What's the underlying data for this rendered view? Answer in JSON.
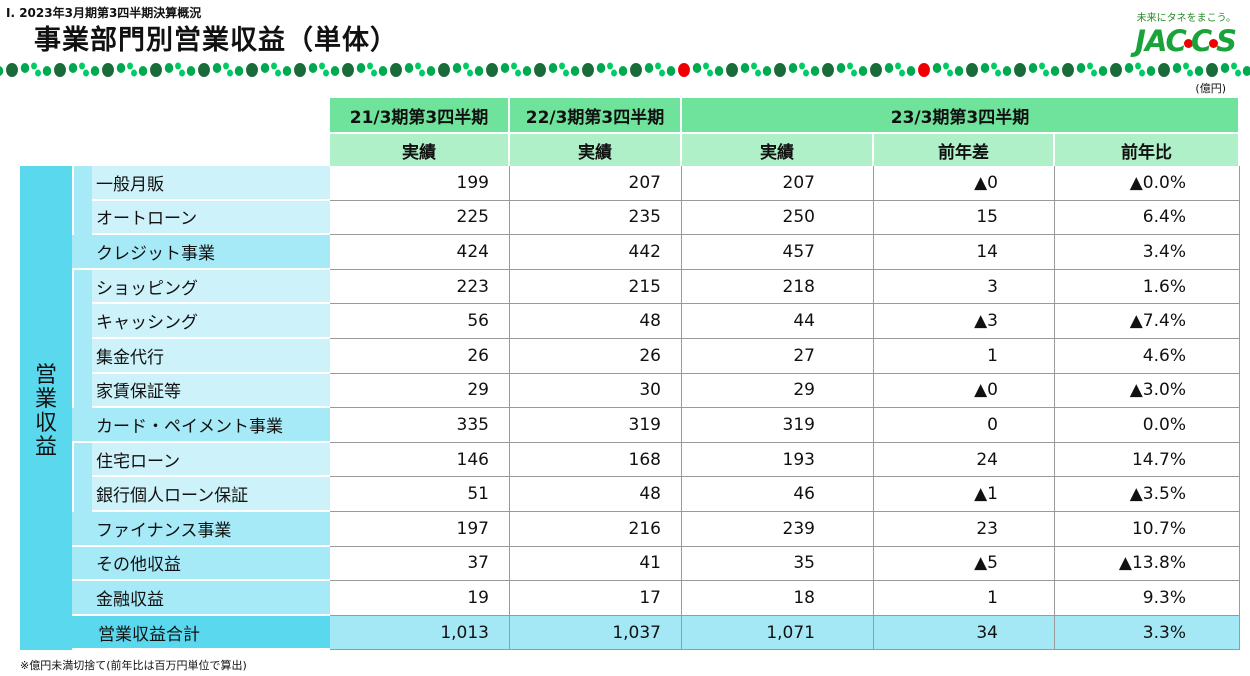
{
  "header": {
    "section_label": "Ⅰ. 2023年3月期第3四半期決算概況",
    "title": "事業部門別営業収益（単体）",
    "tagline": "未来にタネをまこう。",
    "logo": "JACCS",
    "unit": "(億円)"
  },
  "colors": {
    "header_green": "#6fe29c",
    "subheader_green": "#b0f0c8",
    "group_cyan": "#5ad8ee",
    "subtotal_cyan": "#a6e9f7",
    "item_cyan": "#cdf2fa",
    "dot_dark": "#1a6b3a",
    "dot_mid": "#00a84f",
    "dot_light": "#00cc66",
    "dot_red": "#ee0000"
  },
  "table": {
    "group_label": "営業収益",
    "period_headers": [
      "21/3期第3四半期",
      "22/3期第3四半期",
      "23/3期第3四半期"
    ],
    "column_headers": [
      "実績",
      "実績",
      "実績",
      "前年差",
      "前年比"
    ],
    "rows": [
      {
        "label": "一般月販",
        "type": "item",
        "v21": "199",
        "v22": "207",
        "v23": "207",
        "diff": "▲0",
        "ratio": "▲0.0%"
      },
      {
        "label": "オートローン",
        "type": "item",
        "v21": "225",
        "v22": "235",
        "v23": "250",
        "diff": "15",
        "ratio": "6.4%"
      },
      {
        "label": "クレジット事業",
        "type": "subtotal",
        "v21": "424",
        "v22": "442",
        "v23": "457",
        "diff": "14",
        "ratio": "3.4%"
      },
      {
        "label": "ショッピング",
        "type": "item",
        "v21": "223",
        "v22": "215",
        "v23": "218",
        "diff": "3",
        "ratio": "1.6%"
      },
      {
        "label": "キャッシング",
        "type": "item",
        "v21": "56",
        "v22": "48",
        "v23": "44",
        "diff": "▲3",
        "ratio": "▲7.4%"
      },
      {
        "label": "集金代行",
        "type": "item",
        "v21": "26",
        "v22": "26",
        "v23": "27",
        "diff": "1",
        "ratio": "4.6%"
      },
      {
        "label": "家賃保証等",
        "type": "item",
        "v21": "29",
        "v22": "30",
        "v23": "29",
        "diff": "▲0",
        "ratio": "▲3.0%"
      },
      {
        "label": "カード・ペイメント事業",
        "type": "subtotal",
        "v21": "335",
        "v22": "319",
        "v23": "319",
        "diff": "0",
        "ratio": "0.0%"
      },
      {
        "label": "住宅ローン",
        "type": "item",
        "v21": "146",
        "v22": "168",
        "v23": "193",
        "diff": "24",
        "ratio": "14.7%"
      },
      {
        "label": "銀行個人ローン保証",
        "type": "item",
        "v21": "51",
        "v22": "48",
        "v23": "46",
        "diff": "▲1",
        "ratio": "▲3.5%"
      },
      {
        "label": "ファイナンス事業",
        "type": "subtotal",
        "v21": "197",
        "v22": "216",
        "v23": "239",
        "diff": "23",
        "ratio": "10.7%"
      },
      {
        "label": "その他収益",
        "type": "subtotal",
        "v21": "37",
        "v22": "41",
        "v23": "35",
        "diff": "▲5",
        "ratio": "▲13.8%"
      },
      {
        "label": "金融収益",
        "type": "subtotal",
        "v21": "19",
        "v22": "17",
        "v23": "18",
        "diff": "1",
        "ratio": "9.3%"
      },
      {
        "label": "営業収益合計",
        "type": "total",
        "v21": "1,013",
        "v22": "1,037",
        "v23": "1,071",
        "diff": "34",
        "ratio": "3.3%"
      }
    ]
  },
  "footnote": "※億円未満切捨て(前年比は百万円単位で算出)"
}
